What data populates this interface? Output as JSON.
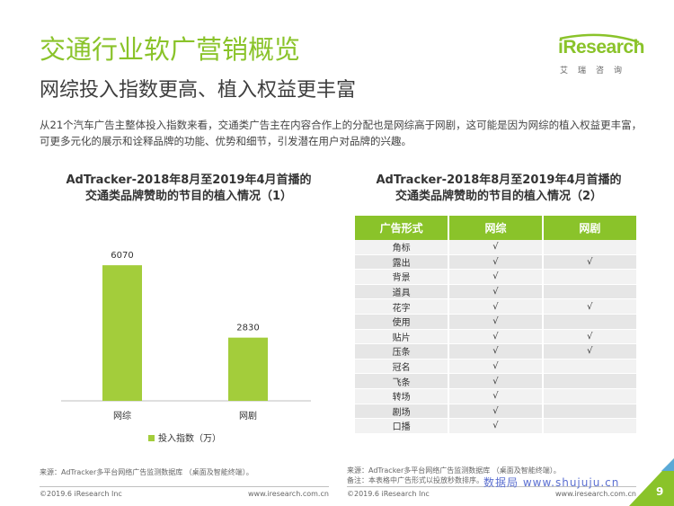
{
  "header": {
    "title": "交通行业软广营销概览",
    "subtitle": "网综投入指数更高、植入权益更丰富",
    "intro": "从21个汽车广告主整体投入指数来看，交通类广告主在内容合作上的分配也是网综高于网剧，这可能是因为网综的植入权益更丰富，可更多元化的展示和诠释品牌的功能、优势和细节，引发潜在用户对品牌的兴趣。"
  },
  "logo": {
    "name": "iResearch",
    "sub": "艾瑞咨询"
  },
  "chart_data": [
    {
      "type": "bar",
      "title": "AdTracker-2018年8月至2019年4月首播的交通类品牌赞助的节目的植入情况（1）",
      "categories": [
        "网综",
        "网剧"
      ],
      "series": [
        {
          "name": "投入指数（万）",
          "values": [
            6070,
            2830
          ]
        }
      ],
      "value_labels": [
        "6070",
        "2830"
      ],
      "ylim": [
        0,
        7000
      ],
      "grid": false,
      "legend": "bottom",
      "color": "#a3cd3b"
    },
    {
      "type": "table",
      "title": "AdTracker-2018年8月至2019年4月首播的交通类品牌赞助的节目的植入情况（2）",
      "columns": [
        "广告形式",
        "网综",
        "网剧"
      ],
      "rows": [
        [
          "角标",
          "√",
          ""
        ],
        [
          "露出",
          "√",
          "√"
        ],
        [
          "背景",
          "√",
          ""
        ],
        [
          "道具",
          "√",
          ""
        ],
        [
          "花字",
          "√",
          "√"
        ],
        [
          "使用",
          "√",
          ""
        ],
        [
          "贴片",
          "√",
          "√"
        ],
        [
          "压条",
          "√",
          "√"
        ],
        [
          "冠名",
          "√",
          ""
        ],
        [
          "飞条",
          "√",
          ""
        ],
        [
          "转场",
          "√",
          ""
        ],
        [
          "剧场",
          "√",
          ""
        ],
        [
          "口播",
          "√",
          ""
        ]
      ],
      "header_color": "#8ac32a"
    }
  ],
  "chart_titles": {
    "left_line1": "AdTracker-2018年8月至2019年4月首播的",
    "left_line2": "交通类品牌赞助的节目的植入情况（1）",
    "right_line1": "AdTracker-2018年8月至2019年4月首播的",
    "right_line2": "交通类品牌赞助的节目的植入情况（2）"
  },
  "sources": {
    "left": "来源：AdTracker多平台网络广告监测数据库 （桌面及智能终端）。",
    "right_line1": "来源：AdTracker多平台网络广告监测数据库 （桌面及智能终端）。",
    "right_line2": "备注：本表格中广告形式以投放秒数排序。"
  },
  "footer": {
    "copyright_left": "©2019.6 iResearch Inc",
    "url_left": "www.iresearch.com.cn",
    "copyright_right": "©2019.6 iResearch Inc",
    "url_right": "www.iresearch.com.cn",
    "watermark": "数据局 www.shujuju.cn",
    "page_number": "9"
  },
  "colors": {
    "accent": "#8ac32a",
    "bar": "#a3cd3b",
    "corner": "#8ac32a",
    "corner_blue": "#5aa9d6"
  }
}
